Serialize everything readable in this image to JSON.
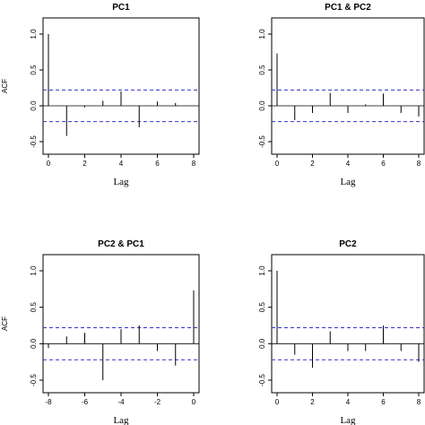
{
  "chart_data": [
    {
      "type": "bar",
      "title": "PC1",
      "xlabel": "Lag",
      "ylabel": "ACF",
      "xlim": [
        0,
        8
      ],
      "ylim": [
        -0.5,
        1.0
      ],
      "x_ticks": [
        0,
        2,
        4,
        6,
        8
      ],
      "y_ticks": [
        -0.5,
        0.0,
        0.5,
        1.0
      ],
      "confidence_band": [
        -0.22,
        0.22
      ],
      "x": [
        0,
        1,
        2,
        3,
        4,
        5,
        6,
        7,
        8
      ],
      "values": [
        1.0,
        -0.42,
        -0.02,
        0.07,
        0.2,
        -0.3,
        0.06,
        0.04,
        0.0
      ]
    },
    {
      "type": "bar",
      "title": "PC1 & PC2",
      "xlabel": "Lag",
      "ylabel": "",
      "xlim": [
        0,
        8
      ],
      "ylim": [
        -0.5,
        1.0
      ],
      "x_ticks": [
        0,
        2,
        4,
        6,
        8
      ],
      "y_ticks": [
        -0.5,
        0.0,
        0.5,
        1.0
      ],
      "confidence_band": [
        -0.22,
        0.22
      ],
      "x": [
        0,
        1,
        2,
        3,
        4,
        5,
        6,
        7,
        8
      ],
      "values": [
        0.73,
        -0.2,
        -0.1,
        0.18,
        -0.1,
        0.02,
        0.17,
        -0.1,
        -0.15
      ]
    },
    {
      "type": "bar",
      "title": "PC2 & PC1",
      "xlabel": "Lag",
      "ylabel": "ACF",
      "xlim": [
        -8,
        0
      ],
      "ylim": [
        -0.5,
        1.0
      ],
      "x_ticks": [
        -8,
        -6,
        -4,
        -2,
        0
      ],
      "y_ticks": [
        -0.5,
        0.0,
        0.5,
        1.0
      ],
      "confidence_band": [
        -0.22,
        0.22
      ],
      "x": [
        -8,
        -7,
        -6,
        -5,
        -4,
        -3,
        -2,
        -1,
        0
      ],
      "values": [
        -0.06,
        0.1,
        0.15,
        -0.5,
        0.2,
        0.25,
        -0.1,
        -0.3,
        0.73
      ]
    },
    {
      "type": "bar",
      "title": "PC2",
      "xlabel": "Lag",
      "ylabel": "",
      "xlim": [
        0,
        8
      ],
      "ylim": [
        -0.5,
        1.0
      ],
      "x_ticks": [
        0,
        2,
        4,
        6,
        8
      ],
      "y_ticks": [
        -0.5,
        0.0,
        0.5,
        1.0
      ],
      "confidence_band": [
        -0.22,
        0.22
      ],
      "x": [
        0,
        1,
        2,
        3,
        4,
        5,
        6,
        7,
        8
      ],
      "values": [
        1.0,
        -0.15,
        -0.33,
        0.17,
        -0.1,
        -0.1,
        0.25,
        -0.1,
        -0.25
      ]
    }
  ]
}
